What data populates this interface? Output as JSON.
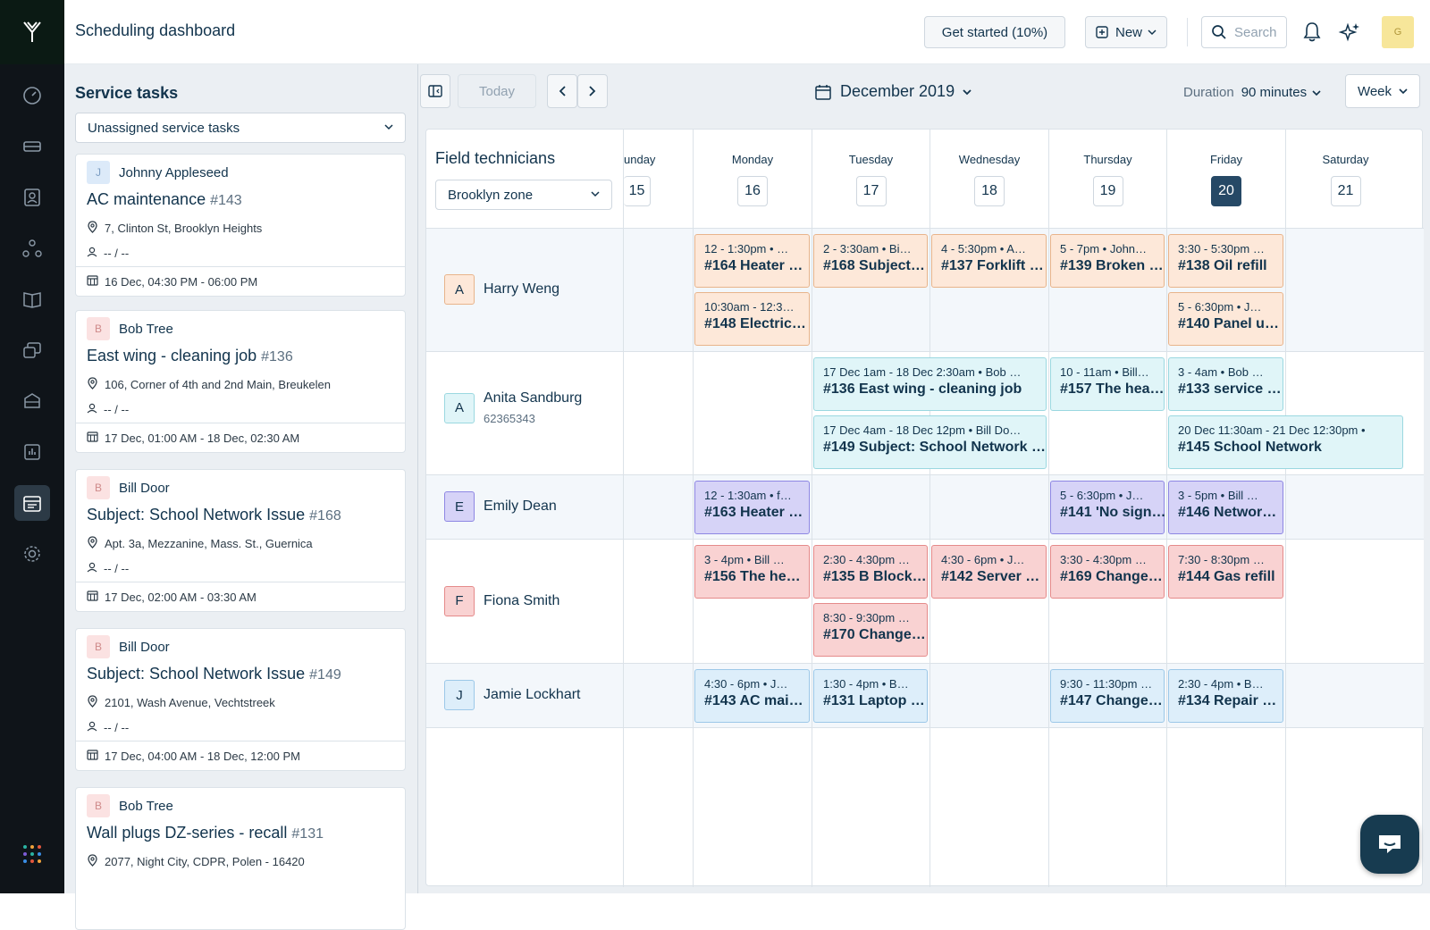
{
  "app": {
    "title": "Scheduling dashboard"
  },
  "header": {
    "get_started": "Get started (10%)",
    "new_label": "New",
    "search_placeholder": "Search",
    "avatar_letter": "G"
  },
  "sidebar_left": {
    "title": "Service tasks",
    "filter": "Unassigned service tasks",
    "tasks": [
      {
        "initial": "J",
        "requester": "Johnny Appleseed",
        "title": "AC maintenance",
        "num": "#143",
        "address": "7, Clinton St, Brooklyn Heights",
        "assignee": "-- / --",
        "datetime": "16 Dec, 04:30 PM - 06:00 PM"
      },
      {
        "initial": "B",
        "requester": "Bob Tree",
        "title": "East wing - cleaning job",
        "num": "#136",
        "address": "106, Corner of 4th and 2nd Main, Breukelen",
        "assignee": "-- / --",
        "datetime": "17 Dec, 01:00 AM - 18 Dec, 02:30 AM"
      },
      {
        "initial": "B",
        "requester": "Bill Door",
        "title": "Subject: School Network Issue",
        "num": "#168",
        "address": "Apt. 3a, Mezzanine, Mass. St., Guernica",
        "assignee": "-- / --",
        "datetime": "17 Dec, 02:00 AM - 03:30 AM"
      },
      {
        "initial": "B",
        "requester": "Bill Door",
        "title": "Subject: School Network Issue",
        "num": "#149",
        "address": "2101, Wash Avenue, Vechtstreek",
        "assignee": "-- / --",
        "datetime": "17 Dec, 04:00 AM - 18 Dec, 12:00 PM"
      },
      {
        "initial": "B",
        "requester": "Bob Tree",
        "title": "Wall plugs DZ-series - recall",
        "num": "#131",
        "address": "2077, Night City, CDPR, Polen - 16420",
        "assignee": "",
        "datetime": ""
      }
    ]
  },
  "toolbar": {
    "today": "Today",
    "month": "December 2019",
    "duration_label": "Duration",
    "duration_value": "90 minutes",
    "view": "Week"
  },
  "calendar": {
    "ft_title": "Field technicians",
    "zone": "Brooklyn zone",
    "days": [
      {
        "name": "unday",
        "num": "15"
      },
      {
        "name": "Monday",
        "num": "16"
      },
      {
        "name": "Tuesday",
        "num": "17"
      },
      {
        "name": "Wednesday",
        "num": "18"
      },
      {
        "name": "Thursday",
        "num": "19"
      },
      {
        "name": "Friday",
        "num": "20"
      },
      {
        "name": "Saturday",
        "num": "21"
      }
    ],
    "technicians": [
      {
        "initial": "A",
        "name": "Harry Weng",
        "sub": ""
      },
      {
        "initial": "A",
        "name": "Anita Sandburg",
        "sub": "62365343"
      },
      {
        "initial": "E",
        "name": "Emily Dean",
        "sub": ""
      },
      {
        "initial": "F",
        "name": "Fiona Smith",
        "sub": ""
      },
      {
        "initial": "J",
        "name": "Jamie Lockhart",
        "sub": ""
      }
    ],
    "events": [
      {
        "l1": "12 - 1:30pm • …",
        "l2": "#164 Heater …"
      },
      {
        "l1": "2 - 3:30am • Bi…",
        "l2": "#168 Subject…"
      },
      {
        "l1": "4 - 5:30pm • A…",
        "l2": "#137 Forklift …"
      },
      {
        "l1": "5 - 7pm • John…",
        "l2": "#139 Broken …"
      },
      {
        "l1": "3:30 - 5:30pm …",
        "l2": "#138 Oil refill"
      },
      {
        "l1": "10:30am - 12:3…",
        "l2": "#148 Electric…"
      },
      {
        "l1": "5 - 6:30pm • J…",
        "l2": "#140 Panel u…"
      },
      {
        "l1": "17 Dec 1am - 18 Dec 2:30am • Bob …",
        "l2": "#136 East wing - cleaning job"
      },
      {
        "l1": "10 - 11am • Bill…",
        "l2": "#157 The hea…"
      },
      {
        "l1": "3 - 4am • Bob …",
        "l2": "#133 service …"
      },
      {
        "l1": "17 Dec 4am - 18 Dec 12pm • Bill Do…",
        "l2": "#149 Subject: School Network …"
      },
      {
        "l1": "20 Dec 11:30am - 21 Dec 12:30pm •",
        "l2": "#145 School Network"
      },
      {
        "l1": "12 - 1:30am • f…",
        "l2": "#163 Heater …"
      },
      {
        "l1": "5 - 6:30pm • J…",
        "l2": "#141 'No sign…"
      },
      {
        "l1": "3 - 5pm • Bill …",
        "l2": "#146 Networ…"
      },
      {
        "l1": "3 - 4pm • Bill …",
        "l2": "#156 The he…"
      },
      {
        "l1": "2:30 - 4:30pm …",
        "l2": "#135 B Block…"
      },
      {
        "l1": "4:30 - 6pm • J…",
        "l2": "#142 Server …"
      },
      {
        "l1": "3:30 - 4:30pm …",
        "l2": "#169 Change…"
      },
      {
        "l1": "7:30 - 8:30pm …",
        "l2": "#144 Gas refill"
      },
      {
        "l1": "8:30 - 9:30pm …",
        "l2": "#170 Change…"
      },
      {
        "l1": "4:30 - 6pm • J…",
        "l2": "#143 AC mai…"
      },
      {
        "l1": "1:30 - 4pm • B…",
        "l2": "#131 Laptop …"
      },
      {
        "l1": "9:30 - 11:30pm …",
        "l2": "#147 Change…"
      },
      {
        "l1": "2:30 - 4pm • B…",
        "l2": "#134 Repair …"
      }
    ]
  },
  "colors": {
    "rail": "#0f1419",
    "today": "#264966",
    "orange": "#fde8d9",
    "teal": "#e0f5f8",
    "purple": "#d6d3f7",
    "red": "#f9d2d2",
    "blue": "#ddeefa"
  }
}
